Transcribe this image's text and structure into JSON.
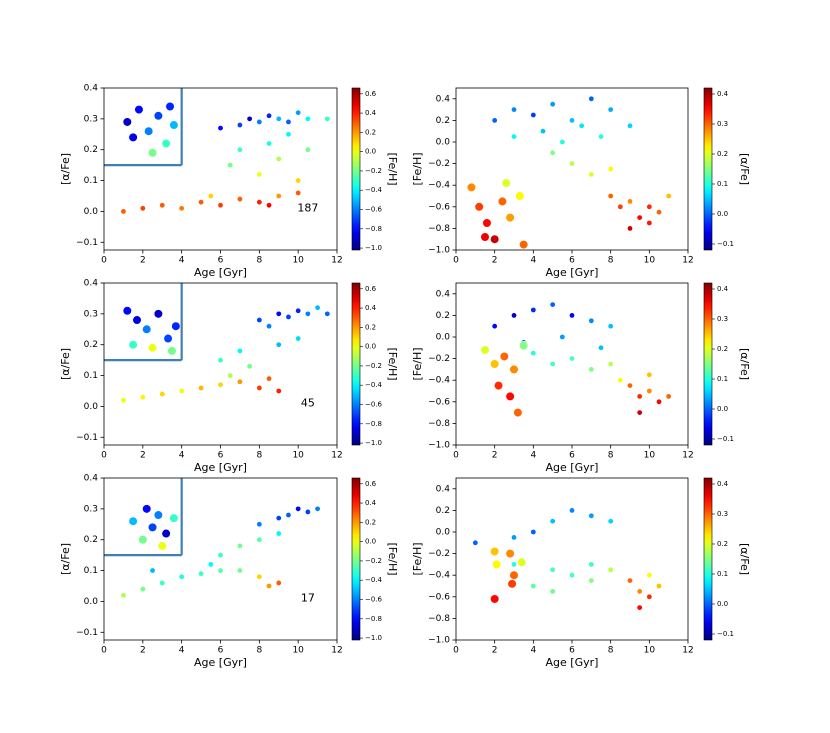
{
  "chart_data": [
    {
      "type": "scatter",
      "xlabel": "Age [Gyr]",
      "ylabel": "[α/Fe]",
      "annotation": "187",
      "xlim": [
        0,
        12
      ],
      "xticks": [
        0,
        2,
        4,
        6,
        8,
        10,
        12
      ],
      "ylim": [
        -0.125,
        0.4
      ],
      "yticks": [
        {
          "value": -0.1,
          "label": "−0.1"
        },
        {
          "value": 0,
          "label": "0.0"
        },
        0.1,
        0.2,
        0.3,
        0.4
      ],
      "inset_box": {
        "x": 4,
        "y": 0.15
      },
      "colorbar": {
        "label": "[Fe/H]",
        "lim": [
          -1.02,
          0.66
        ],
        "ticks": [
          {
            "value": -1.0,
            "label": "−1.0"
          },
          {
            "value": -0.8,
            "label": "−0.8"
          },
          {
            "value": -0.6,
            "label": "−0.6"
          },
          {
            "value": -0.4,
            "label": "−0.4"
          },
          {
            "value": -0.2,
            "label": "−0.2"
          },
          {
            "value": 0,
            "label": "0.0"
          },
          0.2,
          0.4,
          0.6
        ]
      },
      "points": {
        "x": [
          1,
          2,
          3,
          4,
          5,
          6,
          7,
          8,
          9,
          10,
          5.5,
          8.5,
          6,
          7,
          7.5,
          8,
          8.5,
          9,
          9.5,
          10,
          10.5,
          11.5,
          6.5,
          7,
          8,
          8.5,
          9,
          9.5,
          10,
          10.5
        ],
        "y": [
          0.0,
          0.01,
          0.02,
          0.01,
          0.03,
          0.02,
          0.04,
          0.03,
          0.05,
          0.06,
          0.05,
          0.02,
          0.27,
          0.28,
          0.3,
          0.29,
          0.31,
          0.3,
          0.29,
          0.32,
          0.3,
          0.3,
          0.15,
          0.2,
          0.12,
          0.22,
          0.17,
          0.25,
          0.1,
          0.2
        ],
        "c": [
          0.3,
          0.35,
          0.3,
          0.25,
          0.3,
          0.35,
          0.3,
          0.4,
          0.2,
          0.3,
          0.1,
          0.45,
          -0.8,
          -0.7,
          -0.9,
          -0.6,
          -0.75,
          -0.5,
          -0.65,
          -0.55,
          -0.4,
          -0.3,
          -0.2,
          -0.3,
          0.0,
          -0.35,
          -0.1,
          -0.4,
          0.1,
          -0.2
        ]
      },
      "highlight": {
        "x": [
          1.2,
          1.8,
          2.3,
          2.8,
          3.2,
          3.6,
          1.5,
          2.5,
          3.4
        ],
        "y": [
          0.29,
          0.33,
          0.26,
          0.31,
          0.22,
          0.28,
          0.24,
          0.19,
          0.34
        ],
        "c": [
          -0.9,
          -0.8,
          -0.6,
          -0.7,
          -0.3,
          -0.5,
          -0.85,
          -0.2,
          -0.75
        ]
      }
    },
    {
      "type": "scatter",
      "xlabel": "Age [Gyr]",
      "ylabel": "[Fe/H]",
      "xlim": [
        0,
        12
      ],
      "xticks": [
        0,
        2,
        4,
        6,
        8,
        10,
        12
      ],
      "ylim": [
        -1.0,
        0.5
      ],
      "yticks": [
        {
          "value": -1.0,
          "label": "−1.0"
        },
        {
          "value": -0.8,
          "label": "−0.8"
        },
        {
          "value": -0.6,
          "label": "−0.6"
        },
        {
          "value": -0.4,
          "label": "−0.4"
        },
        {
          "value": -0.2,
          "label": "−0.2"
        },
        {
          "value": 0,
          "label": "0.0"
        },
        0.2,
        0.4
      ],
      "colorbar": {
        "label": "[α/Fe]",
        "lim": [
          -0.12,
          0.42
        ],
        "ticks": [
          {
            "value": -0.1,
            "label": "−0.1"
          },
          {
            "value": 0,
            "label": "0.0"
          },
          0.1,
          0.2,
          0.3,
          0.4
        ]
      },
      "points": {
        "x": [
          2,
          3,
          4,
          5,
          6,
          7,
          8,
          9,
          3,
          4.5,
          5.5,
          6.5,
          7.5,
          8,
          8.5,
          9,
          9.5,
          10,
          10.5,
          11,
          9,
          10,
          5,
          6,
          7,
          8
        ],
        "y": [
          0.2,
          0.3,
          0.25,
          0.35,
          0.2,
          0.4,
          0.3,
          0.15,
          0.05,
          0.1,
          0.0,
          0.15,
          0.05,
          -0.5,
          -0.6,
          -0.55,
          -0.7,
          -0.6,
          -0.65,
          -0.5,
          -0.8,
          -0.75,
          -0.1,
          -0.2,
          -0.3,
          -0.25
        ],
        "c": [
          0.0,
          0.02,
          -0.02,
          0.03,
          0.05,
          0.0,
          0.04,
          0.06,
          0.08,
          0.05,
          0.1,
          0.07,
          0.1,
          0.3,
          0.32,
          0.28,
          0.35,
          0.33,
          0.3,
          0.25,
          0.38,
          0.34,
          0.15,
          0.18,
          0.2,
          0.22
        ]
      },
      "highlight": {
        "x": [
          0.8,
          1.2,
          1.6,
          2.0,
          2.4,
          2.8,
          3.3,
          1.5,
          2.6,
          3.5
        ],
        "y": [
          -0.42,
          -0.6,
          -0.75,
          -0.9,
          -0.55,
          -0.7,
          -0.5,
          -0.88,
          -0.38,
          -0.95
        ],
        "c": [
          0.28,
          0.32,
          0.35,
          0.38,
          0.3,
          0.27,
          0.22,
          0.36,
          0.2,
          0.3
        ]
      }
    },
    {
      "type": "scatter",
      "xlabel": "Age [Gyr]",
      "ylabel": "[α/Fe]",
      "annotation": "45",
      "xlim": [
        0,
        12
      ],
      "xticks": [
        0,
        2,
        4,
        6,
        8,
        10,
        12
      ],
      "ylim": [
        -0.125,
        0.4
      ],
      "yticks": [
        {
          "value": -0.1,
          "label": "−0.1"
        },
        {
          "value": 0,
          "label": "0.0"
        },
        0.1,
        0.2,
        0.3,
        0.4
      ],
      "inset_box": {
        "x": 4,
        "y": 0.15
      },
      "colorbar": {
        "label": "[Fe/H]",
        "lim": [
          -1.02,
          0.66
        ],
        "ticks": [
          {
            "value": -1.0,
            "label": "−1.0"
          },
          {
            "value": -0.8,
            "label": "−0.8"
          },
          {
            "value": -0.6,
            "label": "−0.6"
          },
          {
            "value": -0.4,
            "label": "−0.4"
          },
          {
            "value": -0.2,
            "label": "−0.2"
          },
          {
            "value": 0,
            "label": "0.0"
          },
          0.2,
          0.4,
          0.6
        ]
      },
      "points": {
        "x": [
          1,
          2,
          3,
          4,
          5,
          6,
          7,
          8,
          9,
          6.5,
          8.5,
          8,
          8.5,
          9,
          9.5,
          10,
          10.5,
          11,
          11.5,
          6,
          7,
          7.5,
          9,
          10
        ],
        "y": [
          0.02,
          0.03,
          0.04,
          0.05,
          0.06,
          0.07,
          0.08,
          0.06,
          0.05,
          0.1,
          0.09,
          0.28,
          0.26,
          0.3,
          0.29,
          0.31,
          0.3,
          0.32,
          0.3,
          0.15,
          0.18,
          0.13,
          0.2,
          0.22
        ],
        "c": [
          0.0,
          0.05,
          0.1,
          0.0,
          0.15,
          0.1,
          0.2,
          0.35,
          0.4,
          -0.1,
          0.3,
          -0.7,
          -0.6,
          -0.8,
          -0.7,
          -0.75,
          -0.6,
          -0.5,
          -0.65,
          -0.3,
          -0.4,
          -0.2,
          -0.5,
          -0.45
        ]
      },
      "highlight": {
        "x": [
          1.2,
          1.7,
          2.2,
          2.8,
          3.3,
          3.7,
          1.5,
          2.5,
          3.5
        ],
        "y": [
          0.31,
          0.28,
          0.25,
          0.3,
          0.22,
          0.26,
          0.2,
          0.19,
          0.18
        ],
        "c": [
          -0.8,
          -0.85,
          -0.6,
          -0.9,
          -0.7,
          -0.75,
          -0.3,
          0.0,
          -0.2
        ]
      }
    },
    {
      "type": "scatter",
      "xlabel": "Age [Gyr]",
      "ylabel": "[Fe/H]",
      "xlim": [
        0,
        12
      ],
      "xticks": [
        0,
        2,
        4,
        6,
        8,
        10,
        12
      ],
      "ylim": [
        -1.0,
        0.5
      ],
      "yticks": [
        {
          "value": -1.0,
          "label": "−1.0"
        },
        {
          "value": -0.8,
          "label": "−0.8"
        },
        {
          "value": -0.6,
          "label": "−0.6"
        },
        {
          "value": -0.4,
          "label": "−0.4"
        },
        {
          "value": -0.2,
          "label": "−0.2"
        },
        {
          "value": 0,
          "label": "0.0"
        },
        0.2,
        0.4
      ],
      "colorbar": {
        "label": "[α/Fe]",
        "lim": [
          -0.12,
          0.42
        ],
        "ticks": [
          {
            "value": -0.1,
            "label": "−0.1"
          },
          {
            "value": 0,
            "label": "0.0"
          },
          0.1,
          0.2,
          0.3,
          0.4
        ]
      },
      "points": {
        "x": [
          2,
          3,
          4,
          5,
          6,
          7,
          8,
          3.5,
          5.5,
          7.5,
          9,
          9.5,
          10,
          10.5,
          11,
          9.5,
          10,
          6,
          7,
          8,
          8.5,
          4,
          5
        ],
        "y": [
          0.1,
          0.2,
          0.25,
          0.3,
          0.2,
          0.15,
          0.1,
          -0.05,
          0.0,
          -0.1,
          -0.45,
          -0.55,
          -0.5,
          -0.6,
          -0.55,
          -0.7,
          -0.35,
          -0.2,
          -0.3,
          -0.25,
          -0.4,
          -0.15,
          -0.25
        ],
        "c": [
          -0.05,
          -0.08,
          -0.03,
          0.0,
          -0.05,
          0.02,
          0.05,
          0.0,
          0.03,
          0.05,
          0.3,
          0.33,
          0.28,
          0.35,
          0.3,
          0.38,
          0.25,
          0.12,
          0.15,
          0.18,
          0.22,
          0.1,
          0.12
        ]
      },
      "highlight": {
        "x": [
          1.5,
          2.0,
          2.5,
          3.0,
          3.5,
          2.2,
          2.8,
          3.2
        ],
        "y": [
          -0.12,
          -0.25,
          -0.18,
          -0.3,
          -0.08,
          -0.45,
          -0.55,
          -0.7
        ],
        "c": [
          0.2,
          0.25,
          0.3,
          0.28,
          0.15,
          0.33,
          0.35,
          0.3
        ]
      }
    },
    {
      "type": "scatter",
      "xlabel": "Age [Gyr]",
      "ylabel": "[α/Fe]",
      "annotation": "17",
      "xlim": [
        0,
        12
      ],
      "xticks": [
        0,
        2,
        4,
        6,
        8,
        10,
        12
      ],
      "ylim": [
        -0.125,
        0.4
      ],
      "yticks": [
        {
          "value": -0.1,
          "label": "−0.1"
        },
        {
          "value": 0,
          "label": "0.0"
        },
        0.1,
        0.2,
        0.3,
        0.4
      ],
      "inset_box": {
        "x": 4,
        "y": 0.15
      },
      "colorbar": {
        "label": "[Fe/H]",
        "lim": [
          -1.02,
          0.66
        ],
        "ticks": [
          {
            "value": -1.0,
            "label": "−1.0"
          },
          {
            "value": -0.8,
            "label": "−0.8"
          },
          {
            "value": -0.6,
            "label": "−0.6"
          },
          {
            "value": -0.4,
            "label": "−0.4"
          },
          {
            "value": -0.2,
            "label": "−0.2"
          },
          {
            "value": 0,
            "label": "0.0"
          },
          0.2,
          0.4,
          0.6
        ]
      },
      "points": {
        "x": [
          1,
          2,
          3,
          4,
          5,
          6,
          7,
          8,
          9,
          2.5,
          5.5,
          8.5,
          8,
          9,
          9.5,
          10,
          10.5,
          11,
          6,
          7,
          8,
          9
        ],
        "y": [
          0.02,
          0.04,
          0.06,
          0.08,
          0.09,
          0.1,
          0.1,
          0.08,
          0.06,
          0.1,
          0.12,
          0.05,
          0.25,
          0.27,
          0.28,
          0.3,
          0.29,
          0.3,
          0.15,
          0.18,
          0.2,
          0.22
        ],
        "c": [
          -0.1,
          -0.2,
          -0.3,
          -0.35,
          -0.3,
          -0.25,
          -0.2,
          0.1,
          0.3,
          -0.5,
          -0.4,
          0.2,
          -0.6,
          -0.7,
          -0.65,
          -0.8,
          -0.7,
          -0.6,
          -0.3,
          -0.2,
          -0.25,
          -0.4
        ]
      },
      "highlight": {
        "x": [
          1.5,
          2.2,
          2.8,
          3.2,
          3.6,
          2.0,
          3.0,
          2.5
        ],
        "y": [
          0.26,
          0.3,
          0.28,
          0.22,
          0.27,
          0.2,
          0.18,
          0.24
        ],
        "c": [
          -0.5,
          -0.8,
          -0.6,
          -0.9,
          -0.3,
          -0.2,
          0.0,
          -0.7
        ]
      }
    },
    {
      "type": "scatter",
      "xlabel": "Age [Gyr]",
      "ylabel": "[Fe/H]",
      "xlim": [
        0,
        12
      ],
      "xticks": [
        0,
        2,
        4,
        6,
        8,
        10,
        12
      ],
      "ylim": [
        -1.0,
        0.5
      ],
      "yticks": [
        {
          "value": -1.0,
          "label": "−1.0"
        },
        {
          "value": -0.8,
          "label": "−0.8"
        },
        {
          "value": -0.6,
          "label": "−0.6"
        },
        {
          "value": -0.4,
          "label": "−0.4"
        },
        {
          "value": -0.2,
          "label": "−0.2"
        },
        {
          "value": 0,
          "label": "0.0"
        },
        0.2,
        0.4
      ],
      "colorbar": {
        "label": "[α/Fe]",
        "lim": [
          -0.12,
          0.42
        ],
        "ticks": [
          {
            "value": -0.1,
            "label": "−0.1"
          },
          {
            "value": 0,
            "label": "0.0"
          },
          0.1,
          0.2,
          0.3,
          0.4
        ]
      },
      "points": {
        "x": [
          1,
          2,
          3,
          4,
          5,
          6,
          7,
          8,
          3,
          5,
          7,
          9,
          9.5,
          10,
          10.5,
          9.5,
          10,
          4,
          5,
          6,
          7,
          8,
          2
        ],
        "y": [
          -0.1,
          -0.2,
          -0.05,
          0.0,
          0.1,
          0.2,
          0.15,
          0.1,
          -0.3,
          -0.35,
          -0.3,
          -0.45,
          -0.55,
          -0.6,
          -0.5,
          -0.7,
          -0.4,
          -0.5,
          -0.55,
          -0.4,
          -0.45,
          -0.35,
          -0.6
        ],
        "c": [
          0.0,
          0.02,
          0.03,
          0.0,
          0.05,
          0.02,
          0.03,
          0.06,
          0.1,
          0.12,
          0.11,
          0.3,
          0.28,
          0.33,
          0.25,
          0.35,
          0.22,
          0.13,
          0.14,
          0.12,
          0.15,
          0.18,
          0.1
        ]
      },
      "highlight": {
        "x": [
          2.0,
          2.1,
          2.8,
          3.0,
          3.4,
          2.9,
          2.0
        ],
        "y": [
          -0.18,
          -0.3,
          -0.2,
          -0.4,
          -0.28,
          -0.48,
          -0.62
        ],
        "c": [
          0.25,
          0.22,
          0.28,
          0.3,
          0.2,
          0.32,
          0.35
        ]
      }
    }
  ]
}
